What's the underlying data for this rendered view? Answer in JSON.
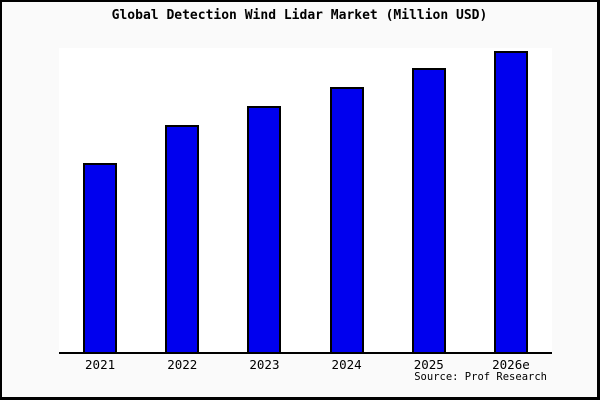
{
  "window": {
    "background_color": "#fafafa",
    "plot_background_color": "#ffffff",
    "frame_border_color": "#000000"
  },
  "chart": {
    "title": "Global Detection Wind Lidar Market (Million USD)",
    "source": "Source: Prof Research"
  },
  "chart_data": {
    "type": "bar",
    "title": "Global Detection Wind Lidar Market (Million USD)",
    "unit": "Million USD",
    "categories": [
      "2021",
      "2022",
      "2023",
      "2024",
      "2025",
      "2026e"
    ],
    "values_relative": [
      0.622,
      0.747,
      0.809,
      0.872,
      0.934,
      0.99
    ],
    "values_index_max100": [
      63,
      75,
      82,
      88,
      94,
      100
    ],
    "xlabel": "",
    "ylabel": "",
    "y_axis_visible": false,
    "y_tick_labels": [],
    "gridlines": false,
    "legend": null,
    "bar_color": "#0000ee",
    "bar_border_color": "#000000",
    "axis_line_color": "#000000",
    "source": "Source: Prof Research"
  }
}
